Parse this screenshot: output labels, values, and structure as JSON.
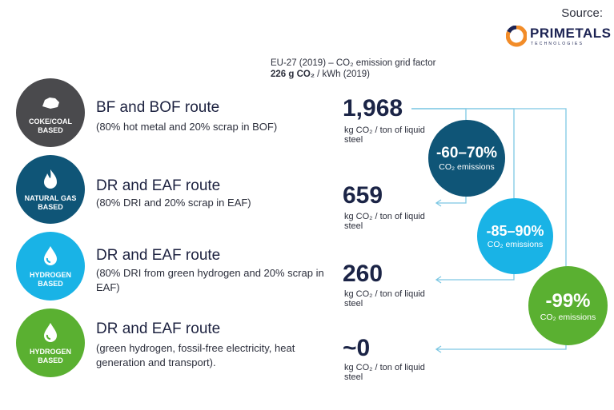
{
  "source_label": "Source:",
  "logo": {
    "name": "PRIMETALS",
    "sub": "TECHNOLOGIES",
    "accent": "#f28c28",
    "color": "#1c2353"
  },
  "grid": {
    "line1": "EU-27 (2019) – CO₂ emission grid factor",
    "line2_bold": "226 g CO₂",
    "line2_rest": " / kWh (2019)"
  },
  "routes": [
    {
      "badge": "COKE/COAL BASED",
      "icon": "coal-icon",
      "color": "#4a4a4d",
      "title": "BF and BOF route",
      "desc": "(80% hot metal and 20% scrap in BOF)",
      "value": "1,968",
      "unit": "kg CO₂ / ton of liquid steel"
    },
    {
      "badge": "NATURAL GAS BASED",
      "icon": "flame-icon",
      "color": "#0f5577",
      "title": "DR and EAF route",
      "desc": "(80% DRI and 20% scrap in EAF)",
      "value": "659",
      "unit": "kg CO₂ / ton of liquid steel"
    },
    {
      "badge": "HYDROGEN BASED",
      "icon": "droplet-icon",
      "color": "#19b3e6",
      "title": "DR and EAF route",
      "desc": "(80% DRI from green hydrogen and 20% scrap in EAF)",
      "value": "260",
      "unit": "kg CO₂ / ton of liquid steel"
    },
    {
      "badge": "HYDROGEN BASED",
      "icon": "droplet-icon",
      "color": "#5ab031",
      "title": "DR and EAF route",
      "desc": "(green hydrogen, fossil-free electricity, heat generation and transport).",
      "value": "~0",
      "unit": "kg CO₂ / ton of liquid steel"
    }
  ],
  "reductions": [
    {
      "pct": "-60–70%",
      "label": "CO₂ emissions",
      "color": "#0f5577"
    },
    {
      "pct": "-85–90%",
      "label": "CO₂ emissions",
      "color": "#19b3e6"
    },
    {
      "pct": "-99%",
      "label": "CO₂ emissions",
      "color": "#5ab031"
    }
  ],
  "colors": {
    "text": "#1d2240",
    "line": "#7ec8e3"
  }
}
